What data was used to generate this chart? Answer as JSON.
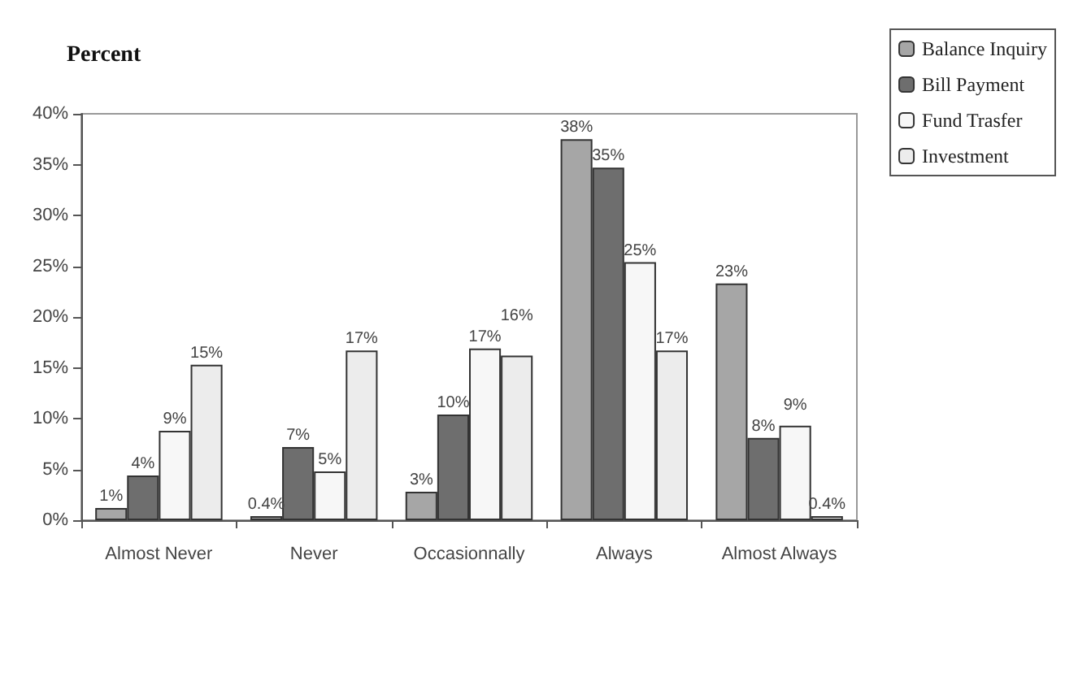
{
  "chart_data": {
    "type": "bar",
    "title": "Percent",
    "categories": [
      "Almost Never",
      "Never",
      "Occasionnally",
      "Always",
      "Almost Always"
    ],
    "series": [
      {
        "name": "Balance Inquiry",
        "color": "#a6a6a6",
        "values": [
          1.2,
          0.4,
          2.8,
          37.5,
          23.3
        ],
        "value_labels": [
          "1%",
          "0.4%",
          "3%",
          "38%",
          "23%"
        ]
      },
      {
        "name": "Bill Payment",
        "color": "#6e6e6e",
        "values": [
          4.4,
          7.2,
          10.4,
          34.7,
          8.1
        ],
        "value_labels": [
          "4%",
          "7%",
          "10%",
          "35%",
          "8%"
        ]
      },
      {
        "name": "Fund Trasfer",
        "color": "#f7f7f7",
        "values": [
          8.8,
          4.8,
          16.9,
          25.4,
          9.3
        ],
        "value_labels": [
          "9%",
          "5%",
          "17%",
          "25%",
          "9%"
        ]
      },
      {
        "name": "Investment",
        "color": "#ececec",
        "values": [
          15.3,
          16.7,
          16.2,
          16.7,
          0.4
        ],
        "value_labels": [
          "15%",
          "17%",
          "16%",
          "17%",
          "0.4%"
        ]
      }
    ],
    "ylim": [
      0,
      40
    ],
    "yticks": [
      {
        "value": 0,
        "label": "0%"
      },
      {
        "value": 5,
        "label": "5%"
      },
      {
        "value": 10,
        "label": "10%"
      },
      {
        "value": 15,
        "label": "15%"
      },
      {
        "value": 20,
        "label": "20%"
      },
      {
        "value": 25,
        "label": "25%"
      },
      {
        "value": 30,
        "label": "30%"
      },
      {
        "value": 35,
        "label": "35%"
      },
      {
        "value": 40,
        "label": "40%"
      }
    ],
    "grid": false,
    "legend": "top right"
  }
}
